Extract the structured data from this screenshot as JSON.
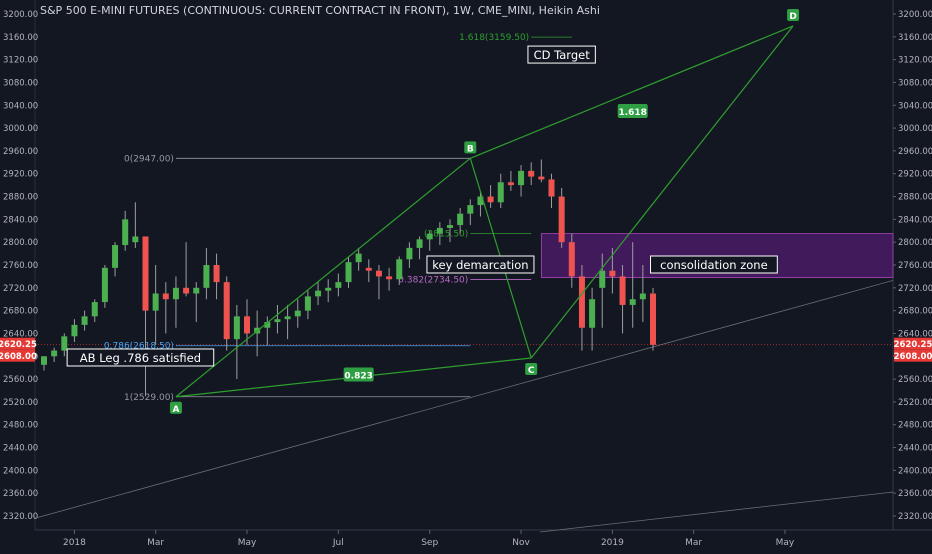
{
  "header": {
    "title": "S&P 500 E-MINI FUTURES (CONTINUOUS: CURRENT CONTRACT IN FRONT), 1W, CME_MINI, Heikin Ashi"
  },
  "colors": {
    "background": "#131722",
    "axis_text": "#b2b5be",
    "bull": "#26a69a",
    "bull_fill": "#4caf50",
    "bear": "#ef5350",
    "pattern": "#2e9e2e",
    "label_green": "#2ea043",
    "consolidation": "#7b1fa2",
    "price_tag": "#e53935"
  },
  "chart_data": {
    "type": "candlestick",
    "y_axis": {
      "min": 2300,
      "max": 3220,
      "ticks": [
        3200,
        3160,
        3120,
        3080,
        3040,
        3000,
        2960,
        2920,
        2880,
        2840,
        2800,
        2760,
        2720,
        2680,
        2640,
        2600,
        2560,
        2520,
        2480,
        2440,
        2400,
        2360,
        2320
      ]
    },
    "y_tick_format": 2,
    "price_tags": [
      {
        "value": 2620.25,
        "label": "2620.25"
      },
      {
        "value": 2608.0,
        "label": "2608.00"
      }
    ],
    "x_axis": {
      "labels": [
        {
          "week": 3,
          "label": "2018"
        },
        {
          "week": 11,
          "label": "Mar"
        },
        {
          "week": 20,
          "label": "May"
        },
        {
          "week": 29,
          "label": "Jul"
        },
        {
          "week": 38,
          "label": "Sep"
        },
        {
          "week": 47,
          "label": "Nov"
        },
        {
          "week": 56,
          "label": "2019"
        },
        {
          "week": 64,
          "label": "Mar"
        },
        {
          "week": 73,
          "label": "May"
        }
      ]
    },
    "candles": [
      {
        "o": 2585,
        "h": 2600,
        "l": 2575,
        "c": 2600
      },
      {
        "o": 2600,
        "h": 2615,
        "l": 2590,
        "c": 2610
      },
      {
        "o": 2610,
        "h": 2640,
        "l": 2600,
        "c": 2635
      },
      {
        "o": 2635,
        "h": 2665,
        "l": 2625,
        "c": 2655
      },
      {
        "o": 2655,
        "h": 2680,
        "l": 2645,
        "c": 2670
      },
      {
        "o": 2670,
        "h": 2700,
        "l": 2660,
        "c": 2695
      },
      {
        "o": 2695,
        "h": 2760,
        "l": 2685,
        "c": 2755
      },
      {
        "o": 2755,
        "h": 2800,
        "l": 2740,
        "c": 2795
      },
      {
        "o": 2795,
        "h": 2855,
        "l": 2785,
        "c": 2840
      },
      {
        "o": 2800,
        "h": 2870,
        "l": 2790,
        "c": 2810
      },
      {
        "o": 2810,
        "h": 2810,
        "l": 2530,
        "c": 2680
      },
      {
        "o": 2680,
        "h": 2760,
        "l": 2620,
        "c": 2710
      },
      {
        "o": 2710,
        "h": 2730,
        "l": 2640,
        "c": 2700
      },
      {
        "o": 2700,
        "h": 2740,
        "l": 2650,
        "c": 2720
      },
      {
        "o": 2720,
        "h": 2800,
        "l": 2705,
        "c": 2710
      },
      {
        "o": 2710,
        "h": 2730,
        "l": 2660,
        "c": 2720
      },
      {
        "o": 2720,
        "h": 2790,
        "l": 2700,
        "c": 2760
      },
      {
        "o": 2760,
        "h": 2780,
        "l": 2700,
        "c": 2730
      },
      {
        "o": 2730,
        "h": 2740,
        "l": 2610,
        "c": 2630
      },
      {
        "o": 2630,
        "h": 2690,
        "l": 2560,
        "c": 2670
      },
      {
        "o": 2670,
        "h": 2700,
        "l": 2620,
        "c": 2640
      },
      {
        "o": 2640,
        "h": 2680,
        "l": 2600,
        "c": 2650
      },
      {
        "o": 2650,
        "h": 2670,
        "l": 2620,
        "c": 2660
      },
      {
        "o": 2660,
        "h": 2690,
        "l": 2640,
        "c": 2665
      },
      {
        "o": 2665,
        "h": 2690,
        "l": 2630,
        "c": 2670
      },
      {
        "o": 2670,
        "h": 2700,
        "l": 2650,
        "c": 2680
      },
      {
        "o": 2680,
        "h": 2715,
        "l": 2665,
        "c": 2705
      },
      {
        "o": 2705,
        "h": 2730,
        "l": 2690,
        "c": 2715
      },
      {
        "o": 2715,
        "h": 2735,
        "l": 2695,
        "c": 2720
      },
      {
        "o": 2720,
        "h": 2745,
        "l": 2705,
        "c": 2730
      },
      {
        "o": 2730,
        "h": 2775,
        "l": 2720,
        "c": 2765
      },
      {
        "o": 2765,
        "h": 2790,
        "l": 2750,
        "c": 2780
      },
      {
        "o": 2755,
        "h": 2770,
        "l": 2730,
        "c": 2750
      },
      {
        "o": 2750,
        "h": 2760,
        "l": 2700,
        "c": 2740
      },
      {
        "o": 2740,
        "h": 2755,
        "l": 2715,
        "c": 2735
      },
      {
        "o": 2735,
        "h": 2775,
        "l": 2725,
        "c": 2770
      },
      {
        "o": 2770,
        "h": 2800,
        "l": 2755,
        "c": 2790
      },
      {
        "o": 2790,
        "h": 2810,
        "l": 2770,
        "c": 2805
      },
      {
        "o": 2805,
        "h": 2820,
        "l": 2785,
        "c": 2815
      },
      {
        "o": 2815,
        "h": 2835,
        "l": 2795,
        "c": 2825
      },
      {
        "o": 2825,
        "h": 2840,
        "l": 2800,
        "c": 2830
      },
      {
        "o": 2830,
        "h": 2860,
        "l": 2815,
        "c": 2850
      },
      {
        "o": 2850,
        "h": 2875,
        "l": 2830,
        "c": 2865
      },
      {
        "o": 2865,
        "h": 2890,
        "l": 2845,
        "c": 2880
      },
      {
        "o": 2880,
        "h": 2900,
        "l": 2860,
        "c": 2870
      },
      {
        "o": 2870,
        "h": 2920,
        "l": 2860,
        "c": 2905
      },
      {
        "o": 2905,
        "h": 2925,
        "l": 2890,
        "c": 2900
      },
      {
        "o": 2900,
        "h": 2935,
        "l": 2880,
        "c": 2925
      },
      {
        "o": 2925,
        "h": 2940,
        "l": 2900,
        "c": 2915
      },
      {
        "o": 2915,
        "h": 2945,
        "l": 2905,
        "c": 2910
      },
      {
        "o": 2910,
        "h": 2920,
        "l": 2860,
        "c": 2880
      },
      {
        "o": 2880,
        "h": 2895,
        "l": 2790,
        "c": 2800
      },
      {
        "o": 2800,
        "h": 2815,
        "l": 2720,
        "c": 2740
      },
      {
        "o": 2740,
        "h": 2760,
        "l": 2610,
        "c": 2650
      },
      {
        "o": 2650,
        "h": 2720,
        "l": 2610,
        "c": 2700
      },
      {
        "o": 2720,
        "h": 2780,
        "l": 2650,
        "c": 2750
      },
      {
        "o": 2750,
        "h": 2790,
        "l": 2710,
        "c": 2740
      },
      {
        "o": 2740,
        "h": 2760,
        "l": 2640,
        "c": 2690
      },
      {
        "o": 2690,
        "h": 2800,
        "l": 2650,
        "c": 2700
      },
      {
        "o": 2700,
        "h": 2760,
        "l": 2660,
        "c": 2710
      },
      {
        "o": 2710,
        "h": 2720,
        "l": 2610,
        "c": 2620
      }
    ],
    "points": [
      {
        "id": "A",
        "week": 13,
        "price": 2529
      },
      {
        "id": "B",
        "week": 42,
        "price": 2947
      },
      {
        "id": "C",
        "week": 48,
        "price": 2597
      },
      {
        "id": "D",
        "week": 73.8,
        "price": 3179
      }
    ],
    "ratios": [
      {
        "label": "0.823",
        "week": 31,
        "price": 2568
      },
      {
        "label": "1.618",
        "week": 58,
        "price": 3030
      }
    ],
    "fib_levels": [
      {
        "label": "0(2947.00)",
        "value": 2947,
        "x0": 13,
        "x1": 42,
        "color": "#9598a1"
      },
      {
        "label": "0.786(2618.50)",
        "value": 2618.5,
        "x0": 13,
        "x1": 42,
        "color": "#42a5f5"
      },
      {
        "label": "1(2529.00)",
        "value": 2529,
        "x0": 13,
        "x1": 42,
        "color": "#9598a1"
      },
      {
        "label": "1.618(3159.50)",
        "value": 3159.5,
        "x0": 48,
        "x1": 52,
        "color": "#2e9e2e"
      },
      {
        "label": "(2815.50)",
        "value": 2815.5,
        "x0": 42,
        "x1": 48,
        "color": "#2e9e2e"
      },
      {
        "label": "0.382(2734.50)",
        "value": 2734.5,
        "x0": 42,
        "x1": 48,
        "color": "#ba68c8"
      }
    ],
    "zone": {
      "label": "consolidation zone",
      "y_top": 2815,
      "y_bottom": 2738,
      "week_start": 49
    },
    "annotations": [
      {
        "text": "CD Target",
        "week": 51,
        "price": 3128
      },
      {
        "text": "key demarcation",
        "week": 43,
        "price": 2760
      },
      {
        "text": "AB Leg .786 satisfied",
        "week": 9.5,
        "price": 2597
      },
      {
        "text": "consolidation zone",
        "week": 66,
        "price": 2760
      }
    ]
  }
}
